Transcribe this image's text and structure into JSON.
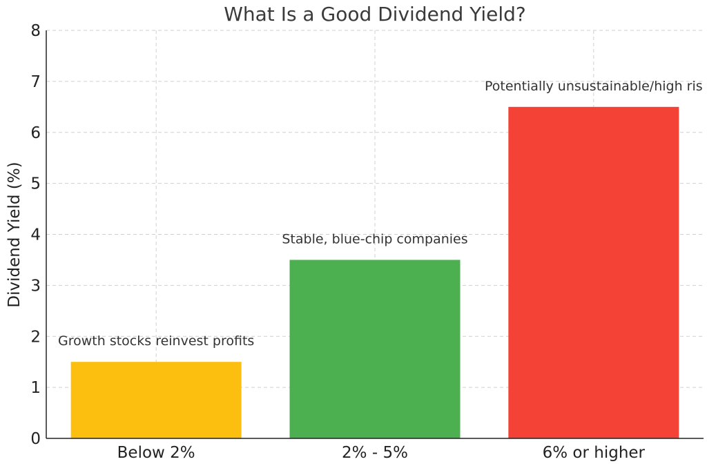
{
  "chart_data": {
    "type": "bar",
    "title": "What Is a Good Dividend Yield?",
    "xlabel": "",
    "ylabel": "Dividend Yield (%)",
    "ylim": [
      0,
      8
    ],
    "yticks": [
      "0",
      "1",
      "2",
      "3",
      "4",
      "5",
      "6",
      "7",
      "8"
    ],
    "grid": true,
    "categories": [
      "Below 2%",
      "2% - 5%",
      "6% or higher"
    ],
    "values": [
      1.5,
      3.5,
      6.5
    ],
    "colors": [
      "#FDBF0F",
      "#4CAF50",
      "#F44336"
    ],
    "annotations": [
      "Growth stocks reinvest profits",
      "Stable, blue-chip companies",
      "Potentially unsustainable/high ris"
    ]
  }
}
